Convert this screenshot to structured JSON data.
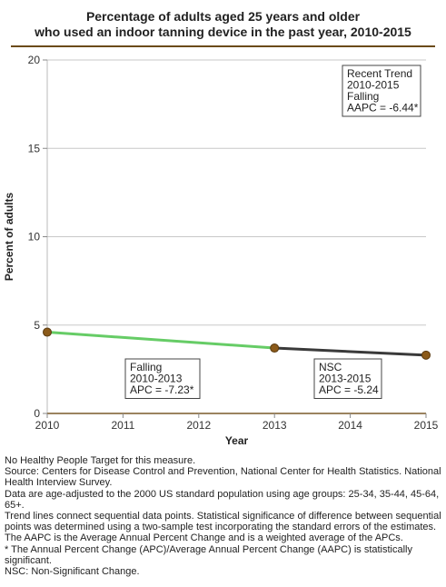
{
  "chart_data": {
    "type": "line",
    "title_lines": [
      "Percentage of adults aged 25 years and older",
      "who used an indoor tanning device in the past year, 2010-2015"
    ],
    "xlabel": "Year",
    "ylabel": "Percent of adults",
    "xlim": [
      2010,
      2015
    ],
    "ylim": [
      0,
      20
    ],
    "x_ticks": [
      "2010",
      "2011",
      "2012",
      "2013",
      "2014",
      "2015"
    ],
    "y_ticks": [
      "0",
      "5",
      "10",
      "15",
      "20"
    ],
    "grid": "horizontal",
    "points": [
      {
        "x": 2010,
        "y": 4.6
      },
      {
        "x": 2013,
        "y": 3.7
      },
      {
        "x": 2015,
        "y": 3.3
      }
    ],
    "segments": [
      {
        "from": 2010,
        "to": 2013,
        "color": "#66cc66",
        "label_lines": [
          "Falling",
          "2010-2013",
          "APC = -7.23*"
        ]
      },
      {
        "from": 2013,
        "to": 2015,
        "color": "#3a3a3a",
        "label_lines": [
          "NSC",
          "2013-2015",
          "APC = -5.24"
        ]
      }
    ],
    "trend_box_lines": [
      "Recent Trend",
      "2010-2015",
      "Falling",
      "AAPC = -6.44*"
    ],
    "marker_color": "#8b5a1a"
  },
  "notes": [
    "No Healthy People Target for this measure.",
    "Source: Centers for Disease Control and Prevention, National Center for Health Statistics. National Health Interview Survey.",
    "Data are age-adjusted to the 2000 US standard population using age groups: 25-34, 35-44, 45-64, 65+.",
    "Trend lines connect sequential data points. Statistical significance of difference between sequential points was determined using a two-sample test incorporating the standard errors of the estimates.",
    "The AAPC is the Average Annual Percent Change and is a weighted average of the APCs.",
    "* The Annual Percent Change (APC)/Average Annual Percent Change (AAPC) is statistically significant.",
    "NSC: Non-Significant Change."
  ]
}
